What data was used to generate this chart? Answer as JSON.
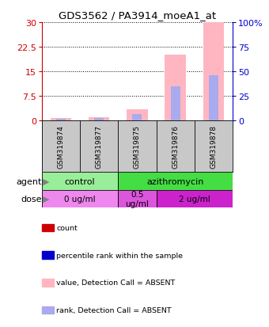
{
  "title": "GDS3562 / PA3914_moeA1_at",
  "samples": [
    "GSM319874",
    "GSM319877",
    "GSM319875",
    "GSM319876",
    "GSM319878"
  ],
  "left_ylim": [
    0,
    30
  ],
  "right_ylim": [
    0,
    100
  ],
  "left_yticks": [
    0,
    7.5,
    15,
    22.5,
    30
  ],
  "right_yticks": [
    0,
    25,
    50,
    75,
    100
  ],
  "left_yticklabels": [
    "0",
    "7.5",
    "15",
    "22.5",
    "30"
  ],
  "right_yticklabels": [
    "0",
    "25",
    "50",
    "75",
    "100%"
  ],
  "pink_bars": [
    0.8,
    1.1,
    3.5,
    20.0,
    30.0
  ],
  "blue_bars": [
    1.5,
    3.0,
    6.5,
    35.0,
    46.0
  ],
  "agent_groups": [
    {
      "label": "control",
      "start": 0,
      "end": 2,
      "color": "#99EE99"
    },
    {
      "label": "azithromycin",
      "start": 2,
      "end": 5,
      "color": "#44DD44"
    }
  ],
  "dose_groups": [
    {
      "label": "0 ug/ml",
      "start": 0,
      "end": 2,
      "color": "#EE88EE"
    },
    {
      "label": "0.5\nug/ml",
      "start": 2,
      "end": 3,
      "color": "#DD55DD"
    },
    {
      "label": "2 ug/ml",
      "start": 3,
      "end": 5,
      "color": "#CC22CC"
    }
  ],
  "legend_items": [
    {
      "label": "count",
      "color": "#CC0000"
    },
    {
      "label": "percentile rank within the sample",
      "color": "#0000CC"
    },
    {
      "label": "value, Detection Call = ABSENT",
      "color": "#FFB6C1"
    },
    {
      "label": "rank, Detection Call = ABSENT",
      "color": "#AAAAEE"
    }
  ],
  "left_tick_color": "#CC0000",
  "right_tick_color": "#0000CC",
  "bar_bg_color": "#C8C8C8",
  "plot_bg_color": "#FFFFFF"
}
